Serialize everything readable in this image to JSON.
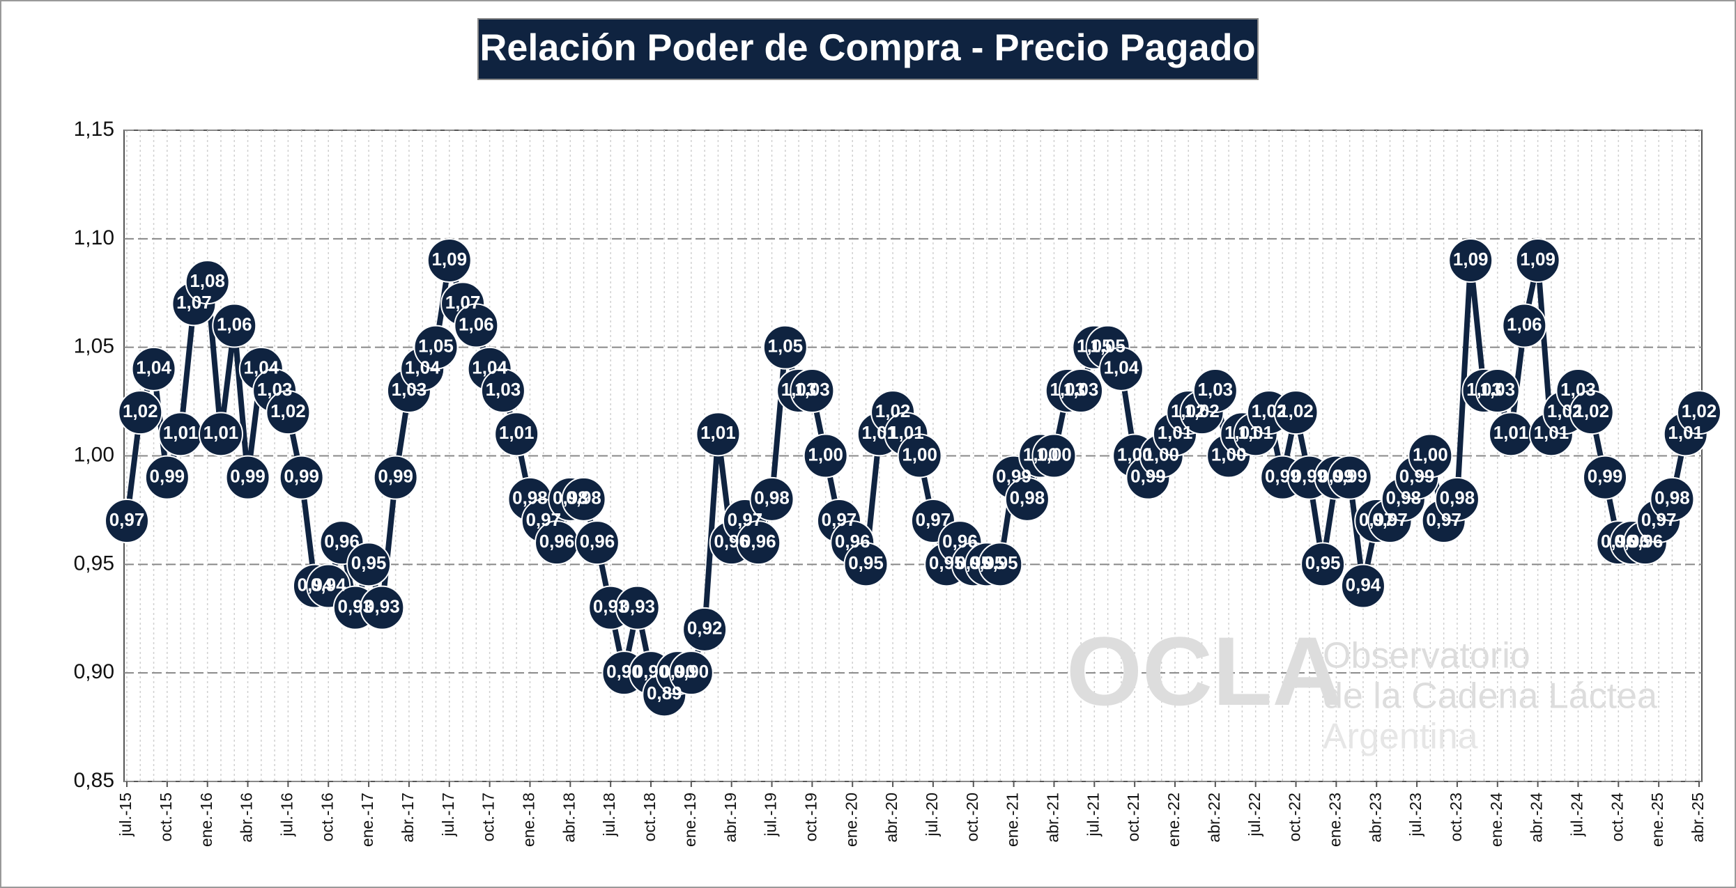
{
  "chart_data": {
    "type": "line",
    "title": "Relación Poder de Compra - Precio Pagado",
    "watermark": [
      "OCLA",
      "Observatorio",
      "de la Cadena Láctea",
      "Argentina"
    ],
    "categories": [
      "jul.-15",
      null,
      null,
      "oct.-15",
      null,
      null,
      "ene.-16",
      null,
      null,
      "abr.-16",
      null,
      null,
      "jul.-16",
      null,
      null,
      "oct.-16",
      null,
      null,
      "ene.-17",
      null,
      null,
      "abr.-17",
      null,
      null,
      "jul.-17",
      null,
      null,
      "oct.-17",
      null,
      null,
      "ene.-18",
      null,
      null,
      "abr.-18",
      null,
      null,
      "jul.-18",
      null,
      null,
      "oct.-18",
      null,
      null,
      "ene.-19",
      null,
      null,
      "abr.-19",
      null,
      null,
      "jul.-19",
      null,
      null,
      "oct.-19",
      null,
      null,
      "ene.-20",
      null,
      null,
      "abr.-20",
      null,
      null,
      "jul.-20",
      null,
      null,
      "oct.-20",
      null,
      null,
      "ene.-21",
      null,
      null,
      "abr.-21",
      null,
      null,
      "jul.-21",
      null,
      null,
      "oct.-21",
      null,
      null,
      "ene.-22",
      null,
      null,
      "abr.-22",
      null,
      null,
      "jul.-22",
      null,
      null,
      "oct.-22",
      null,
      null,
      "ene.-23",
      null,
      null,
      "abr.-23",
      null,
      null,
      "jul.-23",
      null,
      null,
      "oct.-23",
      null,
      null,
      "ene.-24",
      null,
      null,
      "abr.-24",
      null,
      null,
      "jul.-24",
      null,
      null,
      "oct.-24",
      null,
      null,
      "ene.-25",
      null,
      null,
      "abr.-25"
    ],
    "series": [
      {
        "color": "#0f2340",
        "values": [
          0.97,
          1.02,
          1.04,
          0.99,
          1.01,
          1.07,
          1.08,
          1.01,
          1.06,
          0.99,
          1.04,
          1.03,
          1.02,
          0.99,
          0.94,
          0.94,
          0.96,
          0.93,
          0.95,
          0.93,
          0.99,
          1.03,
          1.04,
          1.05,
          1.09,
          1.07,
          1.06,
          1.04,
          1.03,
          1.01,
          0.98,
          0.97,
          0.96,
          0.98,
          0.98,
          0.96,
          0.93,
          0.9,
          0.93,
          0.9,
          0.89,
          0.9,
          0.9,
          0.92,
          1.01,
          0.96,
          0.97,
          0.96,
          0.98,
          1.05,
          1.03,
          1.03,
          1.0,
          0.97,
          0.96,
          0.95,
          1.01,
          1.02,
          1.01,
          1.0,
          0.97,
          0.95,
          0.96,
          0.95,
          0.95,
          0.95,
          0.99,
          0.98,
          1.0,
          1.0,
          1.03,
          1.03,
          1.05,
          1.05,
          1.04,
          1.0,
          0.99,
          1.0,
          1.01,
          1.02,
          1.02,
          1.03,
          1.0,
          1.01,
          1.01,
          1.02,
          0.99,
          1.02,
          0.99,
          0.95,
          0.99,
          0.99,
          0.94,
          0.97,
          0.97,
          0.98,
          0.99,
          1.0,
          0.97,
          0.98,
          1.09,
          1.03,
          1.03,
          1.01,
          1.06,
          1.09,
          1.01,
          1.02,
          1.03,
          1.02,
          0.99,
          0.96,
          0.96,
          0.96,
          0.97,
          0.98,
          1.01,
          1.02
        ],
        "value_labels": [
          "0,97",
          "1,02",
          "1,04",
          "0,99",
          "1,01",
          "1,07",
          "1,08",
          "1,01",
          "1,06",
          "0,99",
          "1,04",
          "1,03",
          "1,02",
          "0,99",
          "0,94",
          "0,94",
          "0,96",
          "0,93",
          "0,95",
          "0,93",
          "0,99",
          "1,03",
          "1,04",
          "1,05",
          "1,09",
          "1,07",
          "1,06",
          "1,04",
          "1,03",
          "1,01",
          "0,98",
          "0,97",
          "0,96",
          "0,98",
          "0,98",
          "0,96",
          "0,93",
          "0,90",
          "0,93",
          "0,90",
          "0,89",
          "0,90",
          "0,90",
          "0,92",
          "1,01",
          "0,96",
          "0,97",
          "0,96",
          "0,98",
          "1,05",
          "1,03",
          "1,03",
          "1,00",
          "0,97",
          "0,96",
          "0,95",
          "1,01",
          "1,02",
          "1,01",
          "1,00",
          "0,97",
          "0,95",
          "0,96",
          "0,95",
          "0,95",
          "0,95",
          "0,99",
          "0,98",
          "1,00",
          "1,00",
          "1,03",
          "1,03",
          "1,05",
          "1,05",
          "1,04",
          "1,00",
          "0,99",
          "1,00",
          "1,01",
          "1,02",
          "1,02",
          "1,03",
          "1,00",
          "1,01",
          "1,01",
          "1,02",
          "0,99",
          "1,02",
          "0,99",
          "0,95",
          "0,99",
          "0,99",
          "0,94",
          "0,97",
          "0,97",
          "0,98",
          "0,99",
          "1,00",
          "0,97",
          "0,98",
          "1,09",
          "1,03",
          "1,03",
          "1,01",
          "1,06",
          "1,09",
          "1,01",
          "1,02",
          "1,03",
          "1,02",
          "0,99",
          "0,96",
          "0,96",
          "0,96",
          "0,97",
          "0,98",
          "1,01",
          "1,02"
        ]
      }
    ],
    "ylim": [
      0.85,
      1.15
    ],
    "yticks": [
      {
        "value": 0.85,
        "label": "0,85"
      },
      {
        "value": 0.9,
        "label": "0,90"
      },
      {
        "value": 0.95,
        "label": "0,95"
      },
      {
        "value": 1.0,
        "label": "1,00"
      },
      {
        "value": 1.05,
        "label": "1,05"
      },
      {
        "value": 1.1,
        "label": "1,10"
      },
      {
        "value": 1.15,
        "label": "1,15"
      }
    ],
    "grid": true
  }
}
